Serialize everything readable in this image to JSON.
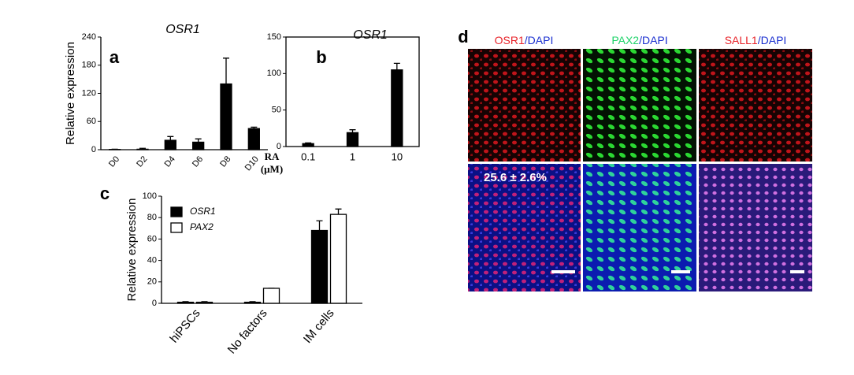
{
  "chart_data": [
    {
      "type": "bar",
      "panel": "a",
      "title": "OSR1",
      "ylabel": "Relative expression",
      "categories": [
        "D0",
        "D2",
        "D4",
        "D6",
        "D8",
        "D10"
      ],
      "values": [
        0.5,
        1,
        20,
        16,
        140,
        45
      ],
      "errors": [
        0.5,
        2,
        8,
        7,
        55,
        3
      ],
      "color": "#000000",
      "ylim": [
        0,
        240
      ],
      "yticks": [
        0,
        60,
        120,
        180,
        240
      ]
    },
    {
      "type": "bar",
      "panel": "b",
      "title": "OSR1",
      "xlabel": [
        "RA",
        "(μM)"
      ],
      "categories": [
        "0.1",
        "1",
        "10"
      ],
      "values": [
        4,
        19,
        105
      ],
      "errors": [
        1,
        4,
        9
      ],
      "color": "#000000",
      "ylim": [
        0,
        150
      ],
      "yticks": [
        0,
        50,
        100,
        150
      ]
    },
    {
      "type": "grouped_bar",
      "panel": "c",
      "ylabel": "Relative expression",
      "categories": [
        "hiPSCs",
        "No factors",
        "IM cells"
      ],
      "series": [
        {
          "name": "OSR1",
          "color": "#000000",
          "values": [
            1,
            1,
            68
          ],
          "errors": [
            0.5,
            0.5,
            9
          ]
        },
        {
          "name": "PAX2",
          "color": "#ffffff",
          "values": [
            1,
            14,
            83
          ],
          "errors": [
            0.5,
            0,
            5
          ]
        }
      ],
      "ylim": [
        0,
        100
      ],
      "yticks": [
        0,
        20,
        40,
        60,
        80,
        100
      ],
      "legend": "upper-left"
    }
  ],
  "panel_d": {
    "label": "d",
    "columns": [
      [
        {
          "text": "OSR1",
          "color": "#e8232a"
        },
        {
          "text": "/DAPI",
          "color": "#1a2fd0"
        }
      ],
      [
        {
          "text": "PAX2",
          "color": "#1fd36a"
        },
        {
          "text": "/DAPI",
          "color": "#1a2fd0"
        }
      ],
      [
        {
          "text": "SALL1",
          "color": "#e8232a"
        },
        {
          "text": "/DAPI",
          "color": "#1a2fd0"
        }
      ]
    ],
    "annotation": "25.6 ± 2.6%"
  }
}
